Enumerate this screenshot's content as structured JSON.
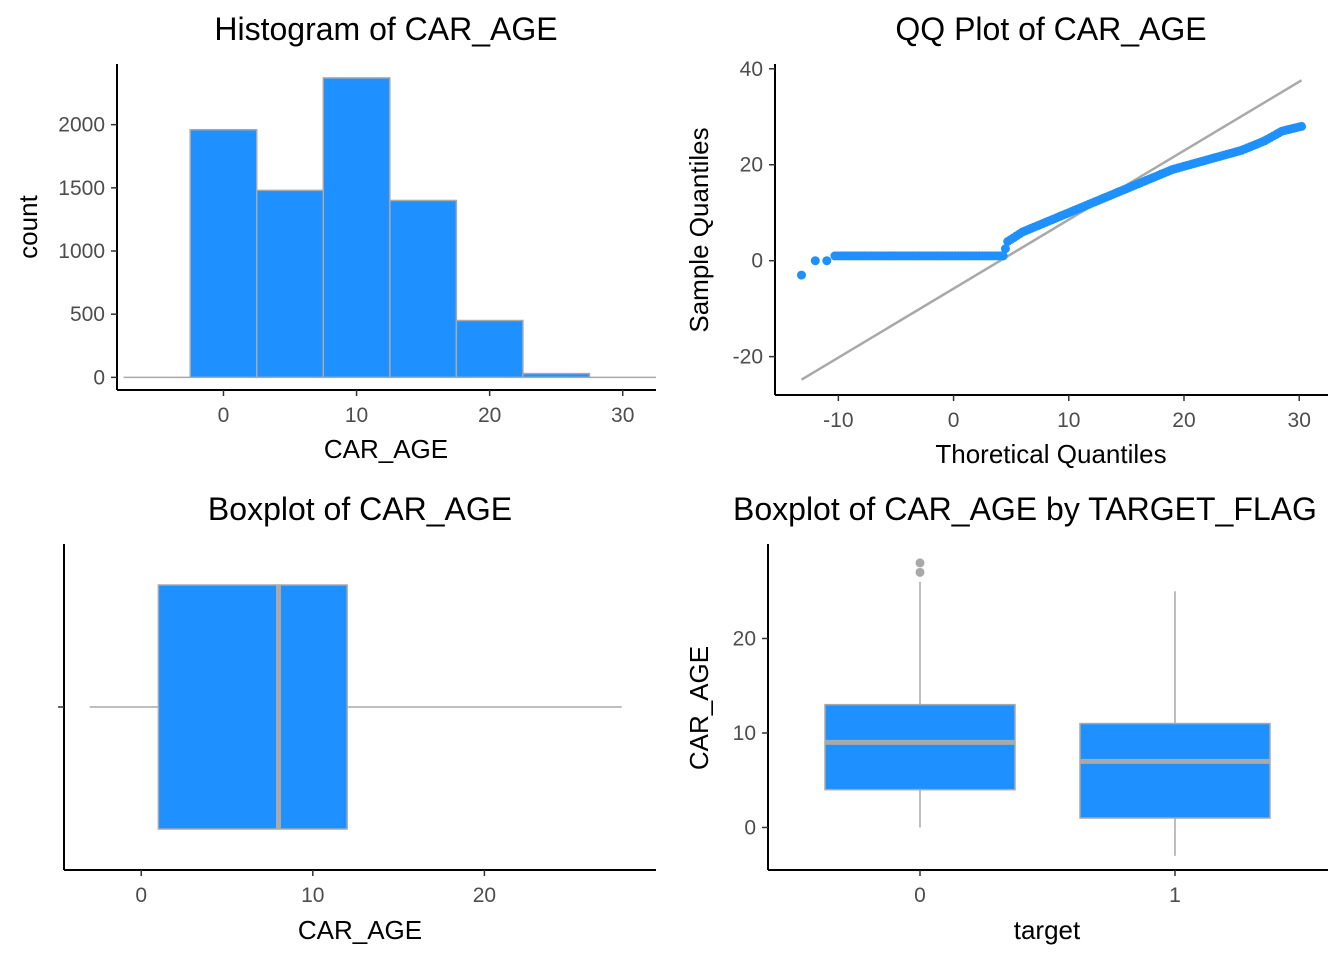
{
  "colors": {
    "fill": "#1E90FF",
    "stroke": "#A9A9A9",
    "outlier": "#A9A9A9",
    "axis": "#000000",
    "tick_text": "#4d4d4d"
  },
  "chart_data": [
    {
      "type": "bar",
      "subtype": "histogram",
      "title": "Histogram of CAR_AGE",
      "xlabel": "CAR_AGE",
      "ylabel": "count",
      "x_ticks": [
        "0",
        "10",
        "20",
        "30"
      ],
      "y_ticks": [
        "0",
        "500",
        "1000",
        "1500",
        "2000"
      ],
      "xlim": [
        -8,
        32.5
      ],
      "ylim": [
        -100,
        2480
      ],
      "bins": [
        {
          "x0": -7.5,
          "x1": -2.5,
          "count": 0
        },
        {
          "x0": -2.5,
          "x1": 2.5,
          "count": 1960
        },
        {
          "x0": 2.5,
          "x1": 7.5,
          "count": 1480
        },
        {
          "x0": 7.5,
          "x1": 12.5,
          "count": 2370
        },
        {
          "x0": 12.5,
          "x1": 17.5,
          "count": 1400
        },
        {
          "x0": 17.5,
          "x1": 22.5,
          "count": 450
        },
        {
          "x0": 22.5,
          "x1": 27.5,
          "count": 30
        },
        {
          "x0": 27.5,
          "x1": 32.5,
          "count": 3
        }
      ],
      "grid": false
    },
    {
      "type": "scatter",
      "subtype": "qq",
      "title": "QQ Plot of CAR_AGE",
      "xlabel": "Thoretical Quantiles",
      "ylabel": "Sample Quantiles",
      "x_ticks": [
        "-10",
        "0",
        "10",
        "20",
        "30"
      ],
      "y_ticks": [
        "-20",
        "0",
        "20",
        "40"
      ],
      "xlim": [
        -15.5,
        32.5
      ],
      "ylim": [
        -28,
        41
      ],
      "qq_line": {
        "x0": -13.2,
        "y0": -24.8,
        "x1": 30.2,
        "y1": 37.6
      },
      "points_description": [
        {
          "x": -13.2,
          "y": -3
        },
        {
          "x": -12,
          "y": 0
        },
        {
          "x": -11,
          "y": 0
        },
        {
          "x": -10.3,
          "y": 1
        },
        {
          "x": 4.3,
          "y": 1
        },
        {
          "x": 4.7,
          "y": 4
        },
        {
          "x": 6,
          "y": 6
        },
        {
          "x": 8,
          "y": 8
        },
        {
          "x": 10,
          "y": 10
        },
        {
          "x": 13,
          "y": 13
        },
        {
          "x": 16,
          "y": 16
        },
        {
          "x": 19,
          "y": 19
        },
        {
          "x": 22,
          "y": 21
        },
        {
          "x": 25,
          "y": 23
        },
        {
          "x": 27,
          "y": 25
        },
        {
          "x": 28.5,
          "y": 27
        },
        {
          "x": 30.2,
          "y": 28
        }
      ],
      "grid": false
    },
    {
      "type": "boxplot",
      "title": "Boxplot of CAR_AGE",
      "xlabel": "CAR_AGE",
      "ylabel": "",
      "x_ticks": [
        "0",
        "10",
        "20"
      ],
      "xlim": [
        -4.5,
        30
      ],
      "box": {
        "min": -3,
        "q1": 1,
        "median": 8,
        "q3": 12,
        "max": 28
      },
      "grid": false
    },
    {
      "type": "boxplot",
      "title": "Boxplot of CAR_AGE by TARGET_FLAG",
      "xlabel": "target",
      "ylabel": "CAR_AGE",
      "categories": [
        "0",
        "1"
      ],
      "y_ticks": [
        "0",
        "10",
        "20"
      ],
      "ylim": [
        -4.5,
        30
      ],
      "boxes": [
        {
          "category": "0",
          "min": 0,
          "q1": 4,
          "median": 9,
          "q3": 13,
          "max": 26,
          "outliers": [
            27,
            28
          ]
        },
        {
          "category": "1",
          "min": -3,
          "q1": 1,
          "median": 7,
          "q3": 11,
          "max": 25,
          "outliers": []
        }
      ],
      "grid": false
    }
  ]
}
